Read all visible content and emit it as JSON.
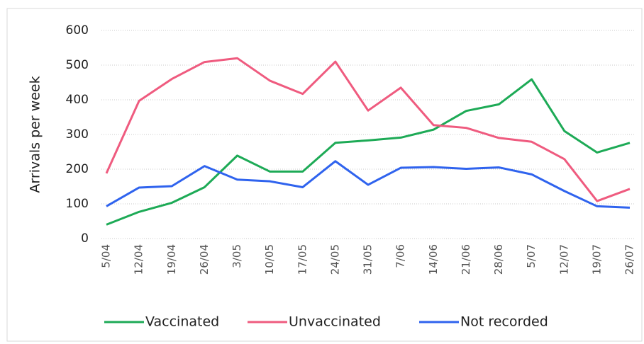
{
  "chart_data": {
    "type": "line",
    "y_label": "Arrivals per week",
    "categories": [
      "5/04",
      "12/04",
      "19/04",
      "26/04",
      "3/05",
      "10/05",
      "17/05",
      "24/05",
      "31/05",
      "7/06",
      "14/06",
      "21/06",
      "28/06",
      "5/07",
      "12/07",
      "19/07",
      "26/07"
    ],
    "series": [
      {
        "name": "Vaccinated",
        "color": "#1daa56",
        "values": [
          40,
          77,
          103,
          148,
          239,
          193,
          193,
          276,
          283,
          291,
          314,
          368,
          387,
          459,
          310,
          248,
          276
        ]
      },
      {
        "name": "Unvaccinated",
        "color": "#ef5b7f",
        "values": [
          188,
          397,
          460,
          509,
          520,
          455,
          417,
          510,
          369,
          435,
          327,
          319,
          290,
          279,
          229,
          108,
          143
        ]
      },
      {
        "name": "Not recorded",
        "color": "#2f63ee",
        "values": [
          93,
          147,
          151,
          209,
          170,
          165,
          148,
          223,
          155,
          204,
          206,
          201,
          205,
          185,
          137,
          93,
          89
        ]
      }
    ],
    "ylim": [
      0,
      600
    ],
    "yticks": [
      0,
      100,
      200,
      300,
      400,
      500,
      600
    ],
    "grid": true
  }
}
